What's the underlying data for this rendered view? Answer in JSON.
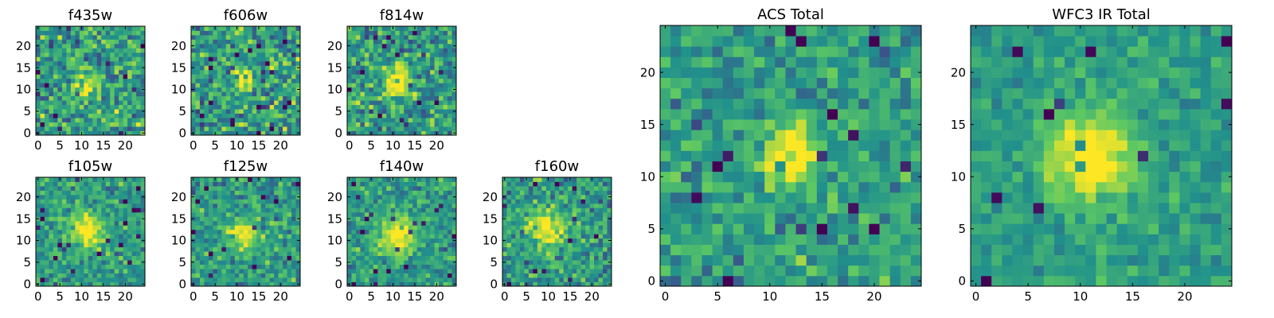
{
  "figure": {
    "background": "#ffffff"
  },
  "colormap": {
    "name": "viridis",
    "stops": [
      "#440154",
      "#3b528b",
      "#21918c",
      "#5ec962",
      "#fde725"
    ]
  },
  "chart_data": [
    {
      "type": "heatmap",
      "title": "f435w",
      "grid_size": 25,
      "xlim": [
        0,
        24
      ],
      "ylim": [
        0,
        24
      ],
      "x_ticks": [
        0,
        5,
        10,
        15,
        20
      ],
      "y_ticks": [
        0,
        5,
        10,
        15,
        20
      ],
      "x_tick_labels": [
        "0",
        "5",
        "10",
        "15",
        "20"
      ],
      "y_tick_labels": [
        "0",
        "5",
        "10",
        "15",
        "20"
      ],
      "colormap": "viridis",
      "source_center": [
        11,
        11
      ],
      "source_amplitude": 0.45,
      "source_sigma": 2.0,
      "noise_amplitude": 0.32,
      "seed": 11,
      "grid": false
    },
    {
      "type": "heatmap",
      "title": "f606w",
      "grid_size": 25,
      "xlim": [
        0,
        24
      ],
      "ylim": [
        0,
        24
      ],
      "x_ticks": [
        0,
        5,
        10,
        15,
        20
      ],
      "y_ticks": [
        0,
        5,
        10,
        15,
        20
      ],
      "x_tick_labels": [
        "0",
        "5",
        "10",
        "15",
        "20"
      ],
      "y_tick_labels": [
        "0",
        "5",
        "10",
        "15",
        "20"
      ],
      "colormap": "viridis",
      "source_center": [
        12,
        12
      ],
      "source_amplitude": 0.55,
      "source_sigma": 1.6,
      "noise_amplitude": 0.32,
      "seed": 23,
      "grid": false
    },
    {
      "type": "heatmap",
      "title": "f814w",
      "grid_size": 25,
      "xlim": [
        0,
        24
      ],
      "ylim": [
        0,
        24
      ],
      "x_ticks": [
        0,
        5,
        10,
        15,
        20
      ],
      "y_ticks": [
        0,
        5,
        10,
        15,
        20
      ],
      "x_tick_labels": [
        "0",
        "5",
        "10",
        "15",
        "20"
      ],
      "y_tick_labels": [
        "0",
        "5",
        "10",
        "15",
        "20"
      ],
      "colormap": "viridis",
      "source_center": [
        11,
        12
      ],
      "source_amplitude": 0.6,
      "source_sigma": 2.2,
      "noise_amplitude": 0.3,
      "seed": 37,
      "grid": false
    },
    {
      "type": "heatmap",
      "title": "f105w",
      "grid_size": 25,
      "xlim": [
        0,
        24
      ],
      "ylim": [
        0,
        24
      ],
      "x_ticks": [
        0,
        5,
        10,
        15,
        20
      ],
      "y_ticks": [
        0,
        5,
        10,
        15,
        20
      ],
      "x_tick_labels": [
        "0",
        "5",
        "10",
        "15",
        "20"
      ],
      "y_tick_labels": [
        "0",
        "5",
        "10",
        "15",
        "20"
      ],
      "colormap": "viridis",
      "source_center": [
        11,
        12
      ],
      "source_amplitude": 0.55,
      "source_sigma": 2.6,
      "noise_amplitude": 0.22,
      "seed": 41,
      "grid": false
    },
    {
      "type": "heatmap",
      "title": "f125w",
      "grid_size": 25,
      "xlim": [
        0,
        24
      ],
      "ylim": [
        0,
        24
      ],
      "x_ticks": [
        0,
        5,
        10,
        15,
        20
      ],
      "y_ticks": [
        0,
        5,
        10,
        15,
        20
      ],
      "x_tick_labels": [
        "0",
        "5",
        "10",
        "15",
        "20"
      ],
      "y_tick_labels": [
        "0",
        "5",
        "10",
        "15",
        "20"
      ],
      "colormap": "viridis",
      "source_center": [
        11,
        11
      ],
      "source_amplitude": 0.45,
      "source_sigma": 2.4,
      "noise_amplitude": 0.24,
      "seed": 53,
      "grid": false
    },
    {
      "type": "heatmap",
      "title": "f140w",
      "grid_size": 25,
      "xlim": [
        0,
        24
      ],
      "ylim": [
        0,
        24
      ],
      "x_ticks": [
        0,
        5,
        10,
        15,
        20
      ],
      "y_ticks": [
        0,
        5,
        10,
        15,
        20
      ],
      "x_tick_labels": [
        "0",
        "5",
        "10",
        "15",
        "20"
      ],
      "y_tick_labels": [
        "0",
        "5",
        "10",
        "15",
        "20"
      ],
      "colormap": "viridis",
      "source_center": [
        11,
        11
      ],
      "source_amplitude": 0.55,
      "source_sigma": 3.0,
      "noise_amplitude": 0.22,
      "seed": 67,
      "grid": false
    },
    {
      "type": "heatmap",
      "title": "f160w",
      "grid_size": 25,
      "xlim": [
        0,
        24
      ],
      "ylim": [
        0,
        24
      ],
      "x_ticks": [
        0,
        5,
        10,
        15,
        20
      ],
      "y_ticks": [
        0,
        5,
        10,
        15,
        20
      ],
      "x_tick_labels": [
        "0",
        "5",
        "10",
        "15",
        "20"
      ],
      "y_tick_labels": [
        "0",
        "5",
        "10",
        "15",
        "20"
      ],
      "colormap": "viridis",
      "source_center": [
        10,
        13
      ],
      "source_amplitude": 0.45,
      "source_sigma": 3.0,
      "noise_amplitude": 0.26,
      "seed": 79,
      "grid": false
    },
    {
      "type": "heatmap",
      "title": "ACS Total",
      "grid_size": 25,
      "xlim": [
        0,
        24
      ],
      "ylim": [
        0,
        24
      ],
      "x_ticks": [
        0,
        5,
        10,
        15,
        20
      ],
      "y_ticks": [
        0,
        5,
        10,
        15,
        20
      ],
      "x_tick_labels": [
        "0",
        "5",
        "10",
        "15",
        "20"
      ],
      "y_tick_labels": [
        "0",
        "5",
        "10",
        "15",
        "20"
      ],
      "colormap": "viridis",
      "source_center": [
        12,
        12
      ],
      "source_amplitude": 0.6,
      "source_sigma": 1.8,
      "noise_amplitude": 0.22,
      "seed": 97,
      "grid": false
    },
    {
      "type": "heatmap",
      "title": "WFC3 IR Total",
      "grid_size": 25,
      "xlim": [
        0,
        24
      ],
      "ylim": [
        0,
        24
      ],
      "x_ticks": [
        0,
        5,
        10,
        15,
        20
      ],
      "y_ticks": [
        0,
        5,
        10,
        15,
        20
      ],
      "x_tick_labels": [
        "0",
        "5",
        "10",
        "15",
        "20"
      ],
      "y_tick_labels": [
        "0",
        "5",
        "10",
        "15",
        "20"
      ],
      "colormap": "viridis",
      "source_center": [
        11,
        12
      ],
      "source_amplitude": 0.55,
      "source_sigma": 3.0,
      "noise_amplitude": 0.14,
      "seed": 103,
      "grid": false
    }
  ]
}
